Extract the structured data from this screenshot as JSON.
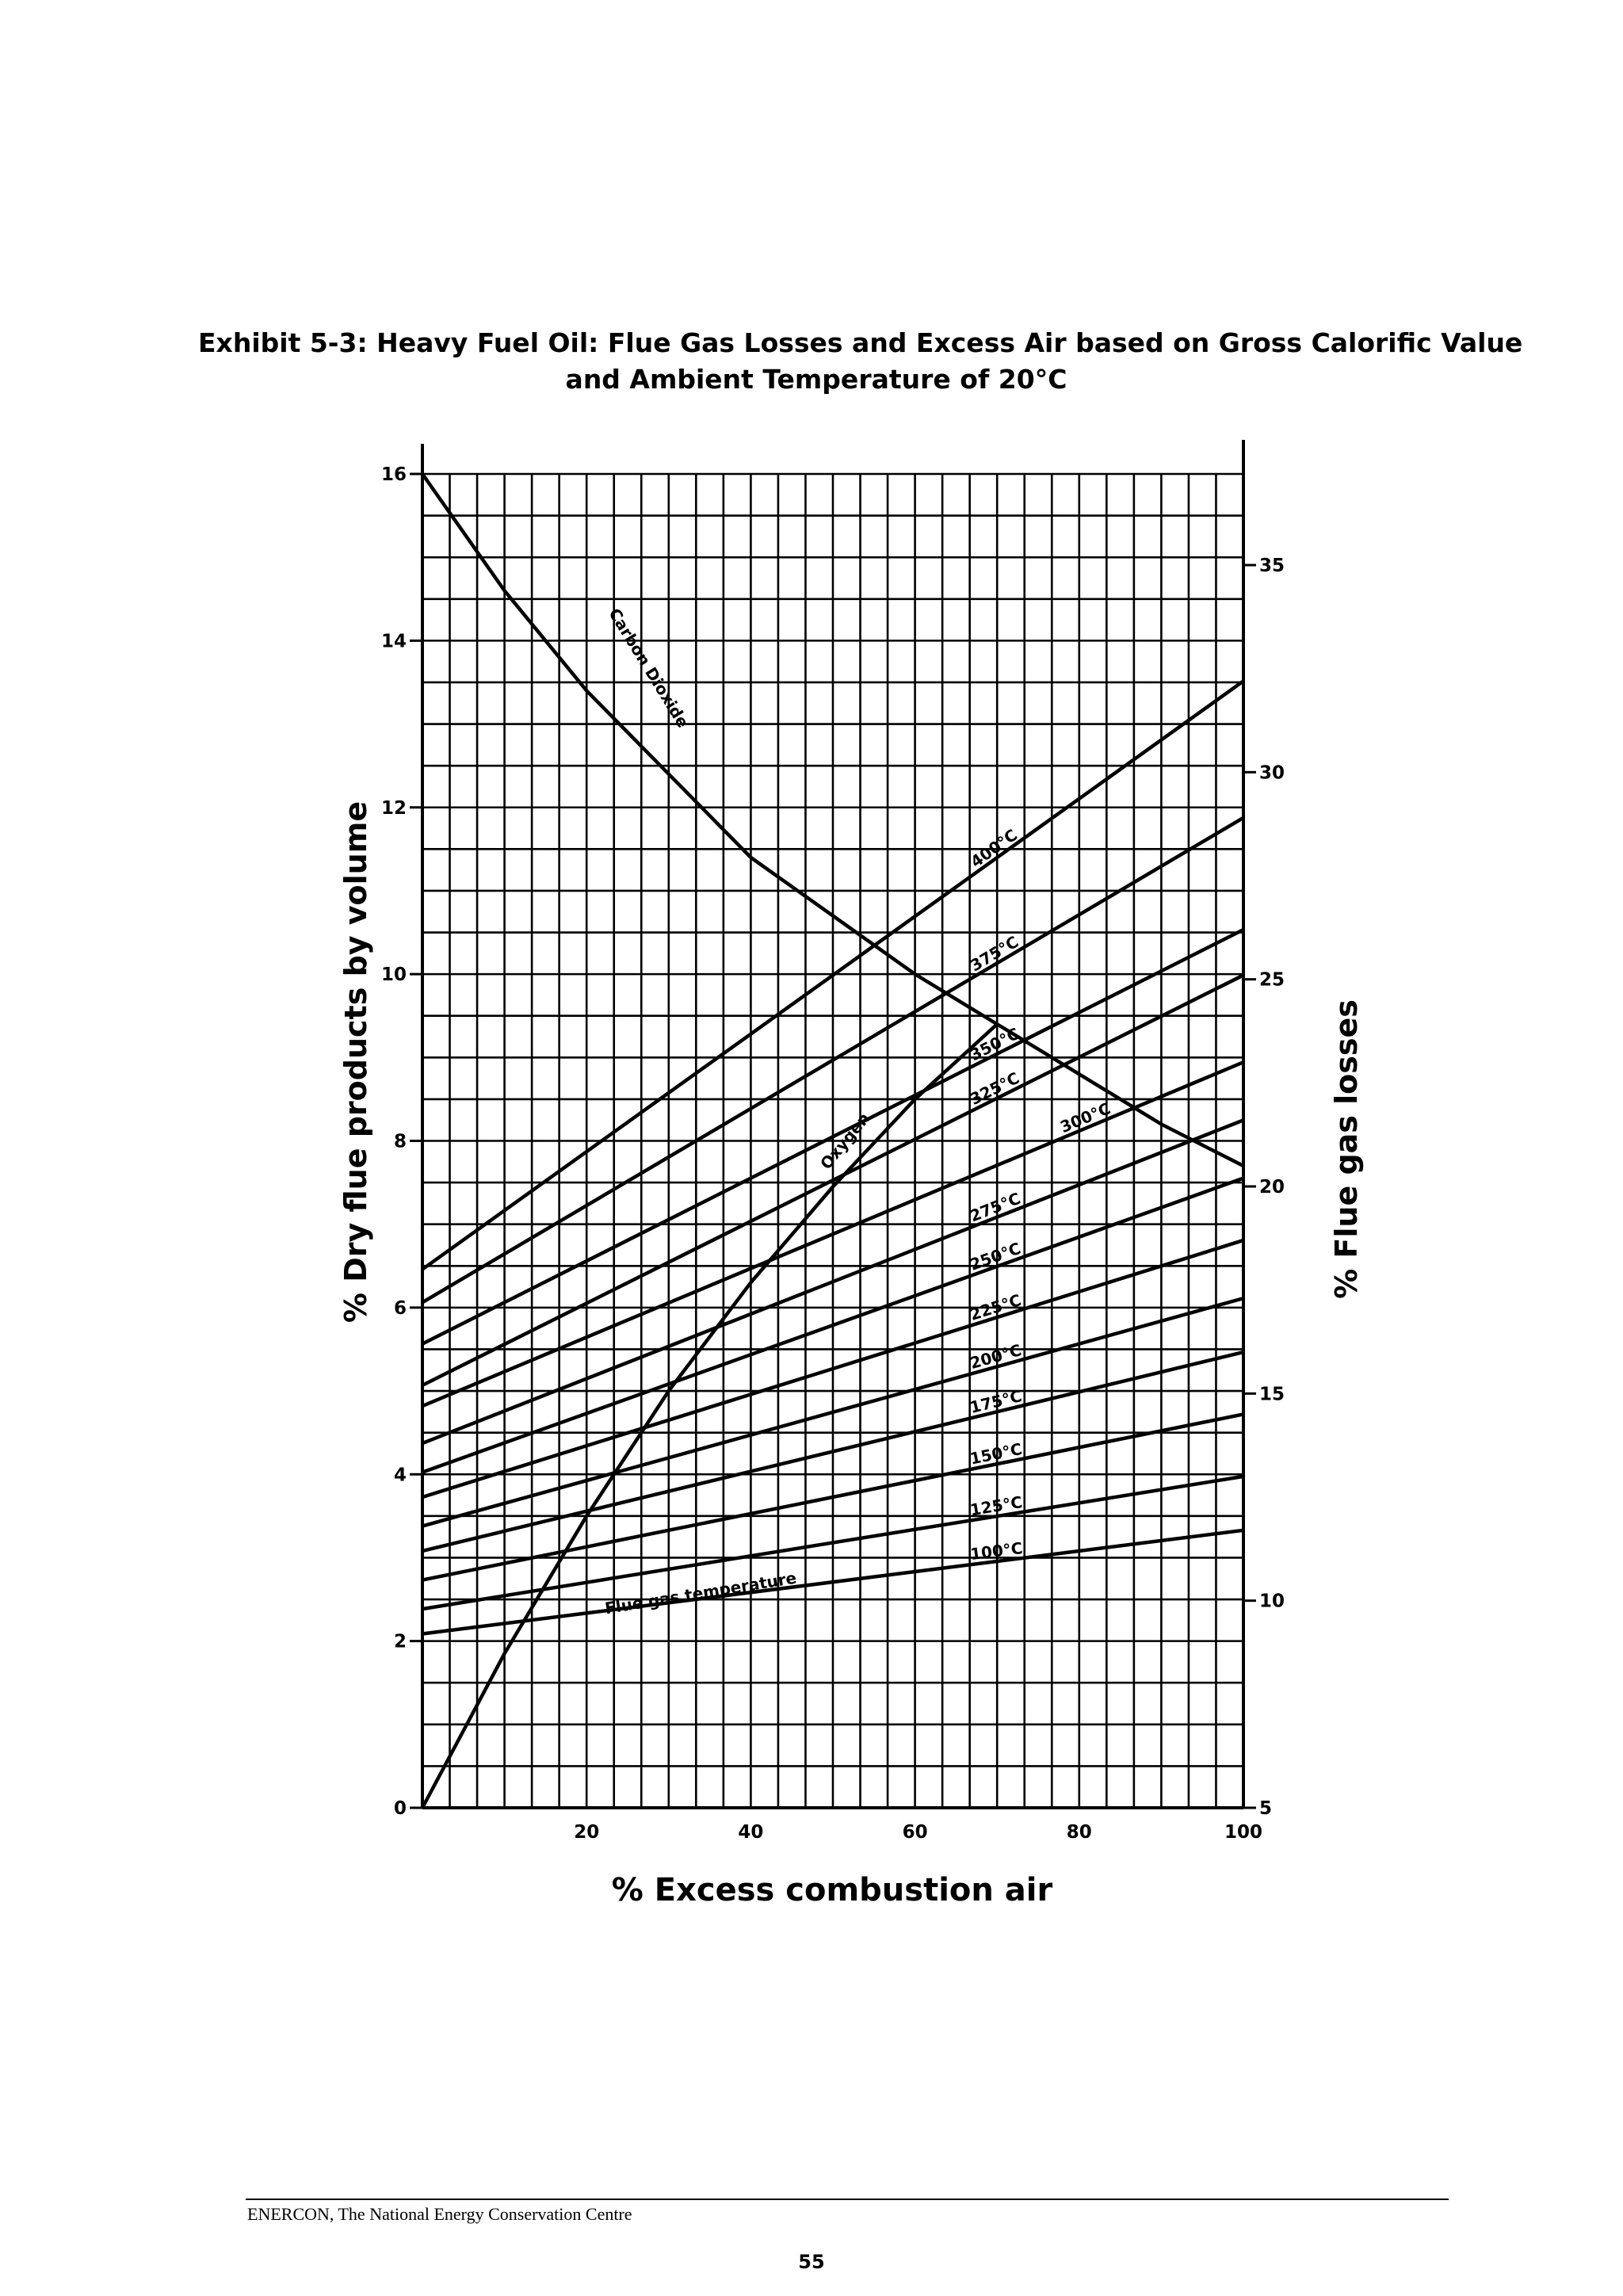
{
  "header": {
    "title_line1": "Exhibit 5-3:  Heavy Fuel Oil: Flue Gas Losses and Excess Air based on Gross Calorific Value",
    "title_line2": "and Ambient Temperature of 20°C"
  },
  "footer": {
    "organization": "ENERCON, The National Energy Conservation Centre",
    "page_number": "55"
  },
  "chart_data": {
    "type": "line",
    "xlabel": "% Excess combustion air",
    "ylabel_left": "% Dry flue products by volume",
    "ylabel_right": "% Flue gas losses",
    "xlim": [
      0,
      100
    ],
    "ylim_left": [
      0,
      16
    ],
    "ylim_right": [
      5,
      38
    ],
    "x_ticks": [
      20,
      40,
      60,
      80,
      100
    ],
    "x_tick_labels": [
      "20",
      "40",
      "60",
      "80",
      "100"
    ],
    "y_left_ticks": [
      0,
      2,
      4,
      6,
      8,
      10,
      12,
      14,
      16
    ],
    "y_left_tick_labels": [
      "0",
      "2",
      "4",
      "6",
      "8",
      "10",
      "12",
      "14",
      "16"
    ],
    "y_right_ticks": [
      5,
      10,
      15,
      20,
      25,
      30,
      35
    ],
    "y_right_tick_labels": [
      "5",
      "10",
      "15",
      "20",
      "25",
      "30",
      "35"
    ],
    "grid": true,
    "gas_curves": [
      {
        "name": "Carbon Dioxide",
        "label": "Carbon Dioxide",
        "axis": "left",
        "x": [
          0,
          10,
          20,
          30,
          40,
          50,
          60,
          70,
          80,
          90,
          100
        ],
        "y": [
          16.0,
          14.6,
          13.4,
          12.4,
          11.4,
          10.7,
          10.0,
          9.4,
          8.8,
          8.2,
          7.7
        ]
      },
      {
        "name": "Oxygen",
        "label": "Oxygen",
        "axis": "left",
        "x": [
          0,
          10,
          20,
          30,
          40,
          50,
          60,
          70
        ],
        "y": [
          0,
          1.85,
          3.5,
          5.0,
          6.3,
          7.45,
          8.5,
          9.4
        ]
      }
    ],
    "temperature_series_label": "Flue gas temperature",
    "temperature_series": [
      {
        "name": "100°C",
        "axis": "right",
        "x": [
          0,
          100
        ],
        "y": [
          9.2,
          11.7
        ]
      },
      {
        "name": "125°C",
        "axis": "right",
        "x": [
          0,
          100
        ],
        "y": [
          9.8,
          13.0
        ]
      },
      {
        "name": "150°C",
        "axis": "right",
        "x": [
          0,
          100
        ],
        "y": [
          10.5,
          14.5
        ]
      },
      {
        "name": "175°C",
        "axis": "right",
        "x": [
          0,
          100
        ],
        "y": [
          11.2,
          16.0
        ]
      },
      {
        "name": "200°C",
        "axis": "right",
        "x": [
          0,
          100
        ],
        "y": [
          11.8,
          17.3
        ]
      },
      {
        "name": "225°C",
        "axis": "right",
        "x": [
          0,
          100
        ],
        "y": [
          12.5,
          18.7
        ]
      },
      {
        "name": "250°C",
        "axis": "right",
        "x": [
          0,
          100
        ],
        "y": [
          13.1,
          20.2
        ]
      },
      {
        "name": "275°C",
        "axis": "right",
        "x": [
          0,
          100
        ],
        "y": [
          13.8,
          21.6
        ]
      },
      {
        "name": "300°C",
        "axis": "right",
        "x": [
          0,
          100
        ],
        "y": [
          14.7,
          23.0
        ]
      },
      {
        "name": "325°C",
        "axis": "right",
        "x": [
          0,
          100
        ],
        "y": [
          15.2,
          25.1
        ]
      },
      {
        "name": "350°C",
        "axis": "right",
        "x": [
          0,
          100
        ],
        "y": [
          16.2,
          26.2
        ]
      },
      {
        "name": "375°C",
        "axis": "right",
        "x": [
          0,
          100
        ],
        "y": [
          17.2,
          28.9
        ]
      },
      {
        "name": "400°C",
        "axis": "right",
        "x": [
          0,
          100
        ],
        "y": [
          18.0,
          32.2
        ]
      }
    ]
  }
}
